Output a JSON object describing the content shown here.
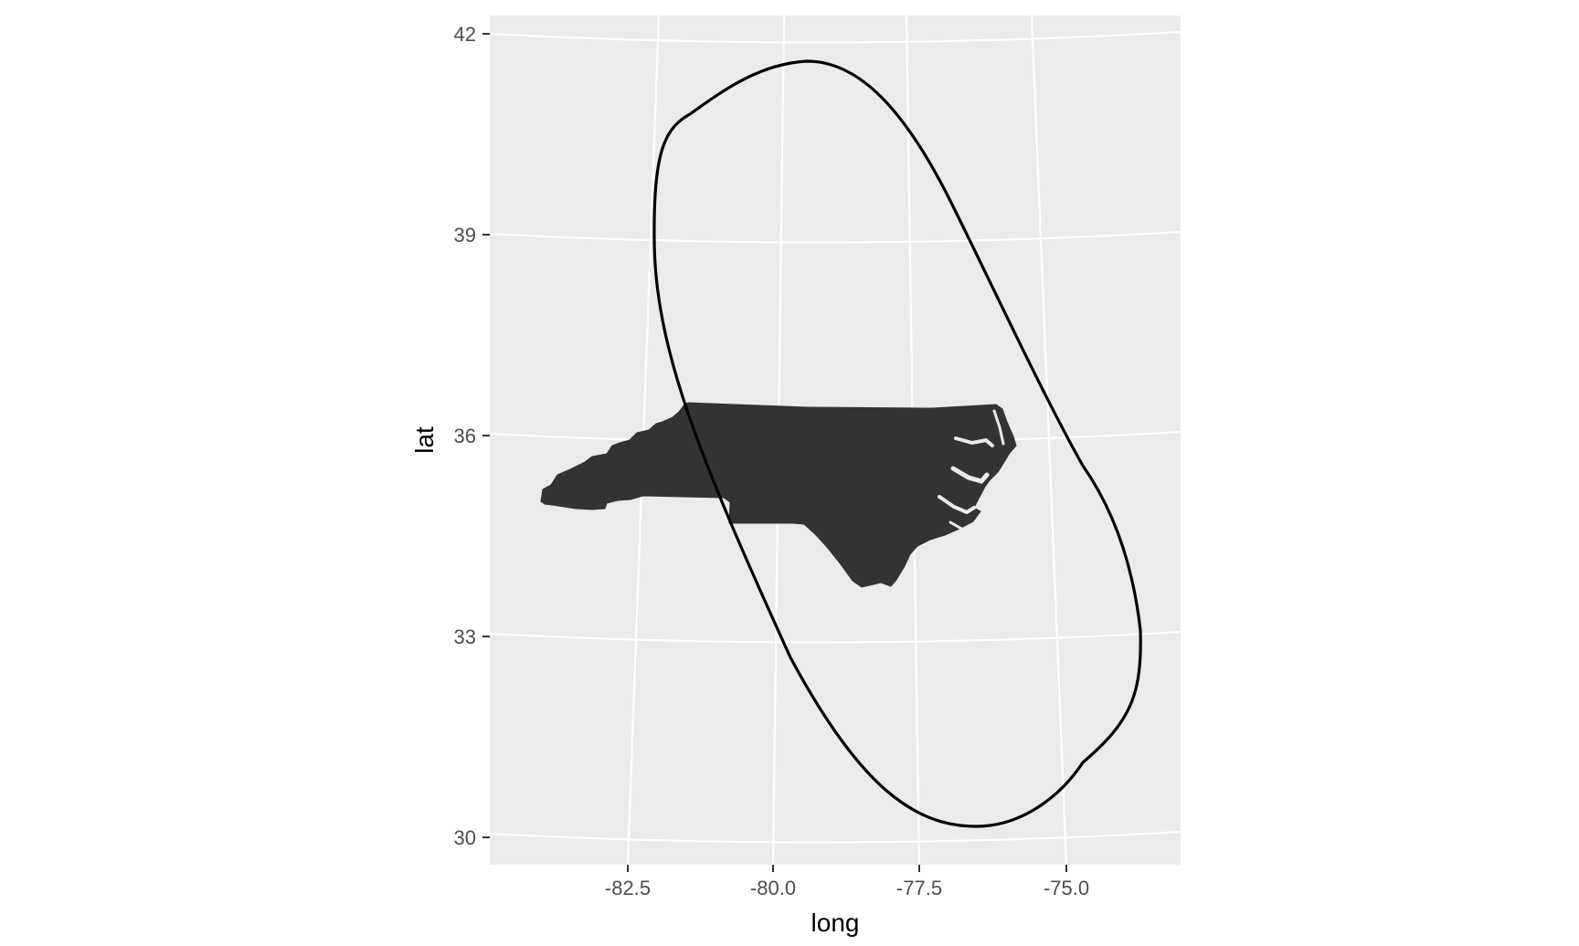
{
  "chart_data": {
    "type": "map",
    "xlabel": "long",
    "ylabel": "lat",
    "x_ticks": [
      "-82.5",
      "-80.0",
      "-77.5",
      "-75.0"
    ],
    "y_ticks": [
      "42",
      "39",
      "36",
      "33",
      "30"
    ],
    "projection": "conic (curved graticule)",
    "layers": [
      {
        "name": "",
        "kind": "filled polygon",
        "depicts": "North Carolina",
        "fill": "#333333"
      },
      {
        "name": "",
        "kind": "outline",
        "stroke": "#000000"
      }
    ]
  },
  "colors": {
    "panel": "#ebebeb",
    "grid": "#ffffff",
    "state_fill": "#333333",
    "outline": "#000000",
    "tick_text": "#4d4d4d",
    "axis_title": "#000000"
  }
}
